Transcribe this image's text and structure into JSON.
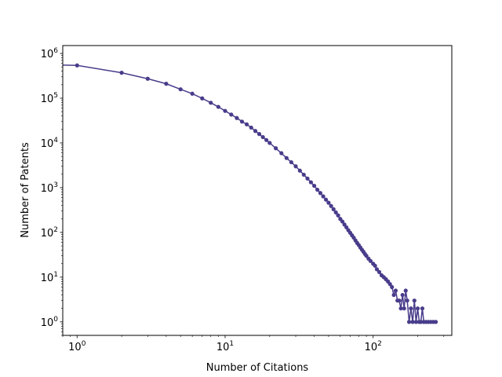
{
  "chart_data": {
    "type": "line",
    "title": "",
    "xlabel": "Number of Citations",
    "ylabel": "Number of Patents",
    "xscale": "log",
    "yscale": "log",
    "xlim": [
      0.8,
      340
    ],
    "ylim": [
      0.5,
      1500000
    ],
    "grid": false,
    "legend": "none",
    "x_ticks": [
      {
        "base": "10",
        "exp": "0",
        "value": 1
      },
      {
        "base": "10",
        "exp": "1",
        "value": 10
      },
      {
        "base": "10",
        "exp": "2",
        "value": 100
      }
    ],
    "y_ticks": [
      {
        "base": "10",
        "exp": "0",
        "value": 1
      },
      {
        "base": "10",
        "exp": "1",
        "value": 10
      },
      {
        "base": "10",
        "exp": "2",
        "value": 100
      },
      {
        "base": "10",
        "exp": "3",
        "value": 1000
      },
      {
        "base": "10",
        "exp": "4",
        "value": 10000
      },
      {
        "base": "10",
        "exp": "5",
        "value": 100000
      },
      {
        "base": "10",
        "exp": "6",
        "value": 1000000
      }
    ],
    "series": [
      {
        "color": "#483d8b",
        "marker": "circle",
        "points": [
          [
            0,
            550000
          ],
          [
            1,
            540000
          ],
          [
            2,
            370000
          ],
          [
            3,
            272000
          ],
          [
            4,
            210000
          ],
          [
            5,
            158000
          ],
          [
            6,
            126000
          ],
          [
            7,
            99000
          ],
          [
            8,
            79000
          ],
          [
            9,
            64000
          ],
          [
            10,
            52000
          ],
          [
            11,
            43000
          ],
          [
            12,
            36000
          ],
          [
            13,
            30000
          ],
          [
            14,
            26000
          ],
          [
            15,
            22000
          ],
          [
            16,
            18500
          ],
          [
            17,
            15800
          ],
          [
            18,
            13500
          ],
          [
            19,
            11600
          ],
          [
            20,
            10000
          ],
          [
            22,
            7600
          ],
          [
            24,
            5900
          ],
          [
            26,
            4600
          ],
          [
            28,
            3700
          ],
          [
            30,
            3000
          ],
          [
            32,
            2400
          ],
          [
            34,
            1950
          ],
          [
            36,
            1600
          ],
          [
            38,
            1320
          ],
          [
            40,
            1100
          ],
          [
            42,
            900
          ],
          [
            44,
            760
          ],
          [
            46,
            640
          ],
          [
            48,
            540
          ],
          [
            50,
            460
          ],
          [
            52,
            390
          ],
          [
            54,
            330
          ],
          [
            56,
            280
          ],
          [
            58,
            240
          ],
          [
            60,
            200
          ],
          [
            62,
            175
          ],
          [
            64,
            150
          ],
          [
            66,
            130
          ],
          [
            68,
            112
          ],
          [
            70,
            98
          ],
          [
            72,
            86
          ],
          [
            74,
            76
          ],
          [
            76,
            66
          ],
          [
            78,
            58
          ],
          [
            80,
            52
          ],
          [
            82,
            46
          ],
          [
            84,
            41
          ],
          [
            86,
            37
          ],
          [
            88,
            33
          ],
          [
            90,
            30
          ],
          [
            93,
            26
          ],
          [
            96,
            23
          ],
          [
            100,
            20
          ],
          [
            103,
            18
          ],
          [
            106,
            15
          ],
          [
            110,
            13
          ],
          [
            114,
            11
          ],
          [
            118,
            10
          ],
          [
            122,
            9
          ],
          [
            126,
            8
          ],
          [
            130,
            7
          ],
          [
            134,
            6
          ],
          [
            138,
            4
          ],
          [
            142,
            5
          ],
          [
            146,
            3
          ],
          [
            150,
            3
          ],
          [
            154,
            2
          ],
          [
            158,
            4
          ],
          [
            162,
            2
          ],
          [
            166,
            5
          ],
          [
            170,
            3
          ],
          [
            175,
            1
          ],
          [
            180,
            2
          ],
          [
            185,
            1
          ],
          [
            190,
            3
          ],
          [
            195,
            1
          ],
          [
            200,
            2
          ],
          [
            205,
            1
          ],
          [
            210,
            1
          ],
          [
            215,
            2
          ],
          [
            220,
            1
          ],
          [
            228,
            1
          ],
          [
            236,
            1
          ],
          [
            245,
            1
          ],
          [
            255,
            1
          ],
          [
            265,
            1
          ]
        ]
      }
    ]
  }
}
